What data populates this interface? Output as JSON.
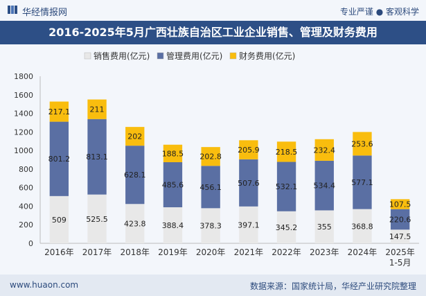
{
  "header": {
    "brand": "华经情报网",
    "slogan": "专业严谨 ● 客观科学"
  },
  "chart_data": {
    "type": "bar",
    "stacked": true,
    "title": "2016-2025年5月广西壮族自治区工业企业销售、管理及财务费用",
    "categories": [
      "2016年",
      "2017年",
      "2018年",
      "2019年",
      "2020年",
      "2021年",
      "2022年",
      "2023年",
      "2024年",
      "2025年\n1-5月"
    ],
    "series": [
      {
        "name": "销售费用(亿元)",
        "color": "#e8e8e8",
        "values": [
          509,
          525.5,
          423.8,
          388.4,
          378.3,
          397.1,
          345.2,
          355,
          368.8,
          147.5
        ]
      },
      {
        "name": "管理费用(亿元)",
        "color": "#5a6fa3",
        "values": [
          801.2,
          813.1,
          628.1,
          485.6,
          456.1,
          507.6,
          532.1,
          534.4,
          577.1,
          220.6
        ]
      },
      {
        "name": "财务费用(亿元)",
        "color": "#f9bd0e",
        "values": [
          217.1,
          211,
          202,
          188.5,
          202.8,
          205.9,
          218.5,
          232.4,
          253.6,
          107.5
        ]
      }
    ],
    "ylim": [
      0,
      1800
    ],
    "yticks": [
      0,
      200,
      400,
      600,
      800,
      1000,
      1200,
      1400,
      1600,
      1800
    ],
    "legend_position": "top",
    "grid": false
  },
  "footer": {
    "site": "www.huaon.com",
    "source": "数据来源：国家统计局，华经产业研究院整理"
  }
}
